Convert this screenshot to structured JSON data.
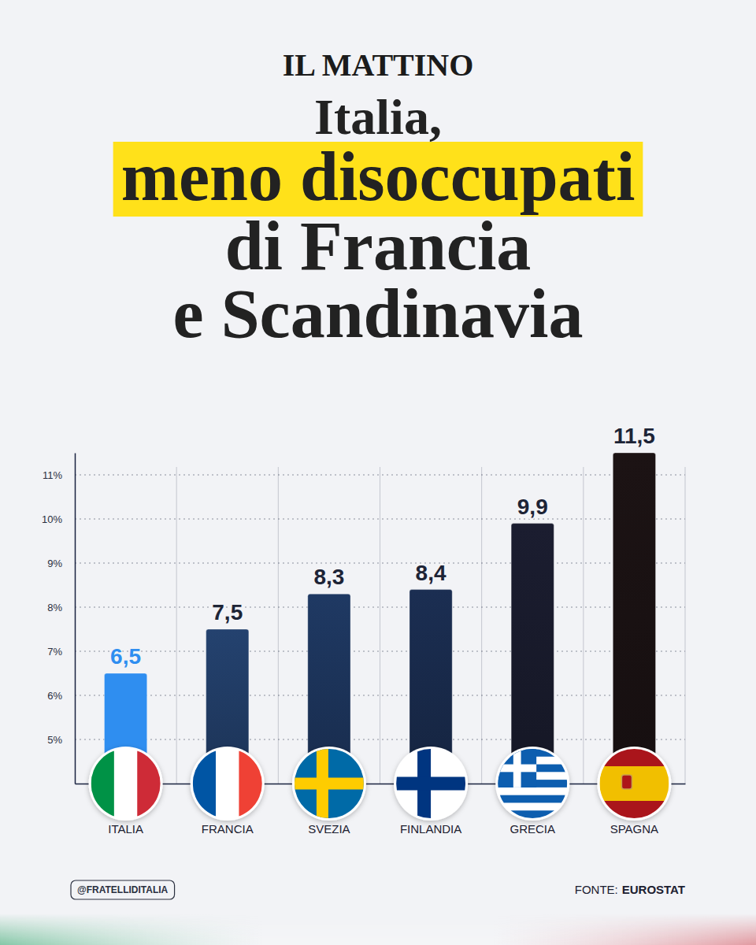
{
  "chart_data": {
    "type": "bar",
    "publisher": "IL MATTINO",
    "title": [
      "Italia,",
      "meno disoccupati",
      "di Francia",
      "e Scandinavia"
    ],
    "categories": [
      "ITALIA",
      "FRANCIA",
      "SVEZIA",
      "FINLANDIA",
      "GRECIA",
      "SPAGNA"
    ],
    "values": [
      6.5,
      7.5,
      8.3,
      8.4,
      9.9,
      11.5
    ],
    "value_labels": [
      "6,5",
      "7,5",
      "8,3",
      "8,4",
      "9,9",
      "11,5"
    ],
    "colors": [
      "#2f8ef0",
      "#24426f",
      "#1f3963",
      "#1b2e52",
      "#1b1d30",
      "#1c1314"
    ],
    "ylim": [
      4,
      11.5
    ],
    "yticks": [
      {
        "value": 5,
        "label": "5%"
      },
      {
        "value": 6,
        "label": "6%"
      },
      {
        "value": 7,
        "label": "7%"
      },
      {
        "value": 8,
        "label": "8%"
      },
      {
        "value": 9,
        "label": "9%"
      },
      {
        "value": 10,
        "label": "10%"
      },
      {
        "value": 11,
        "label": "11%"
      }
    ],
    "grid": true,
    "data_labels": true,
    "credit": "@FRATELLIDITALIA",
    "source_label": "FONTE:",
    "source": "EUROSTAT"
  }
}
